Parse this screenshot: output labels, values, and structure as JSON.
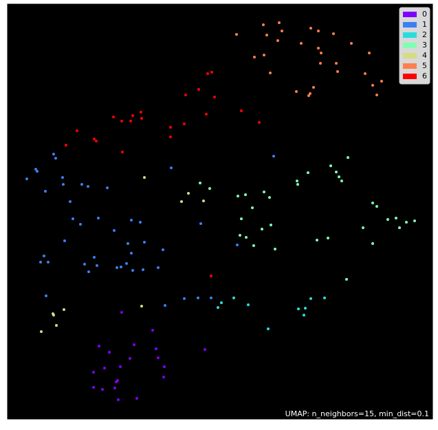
{
  "chart_data": {
    "type": "scatter",
    "annotation": "UMAP: n_neighbors=15, min_dist=0.1",
    "xlim": [
      0,
      618
    ],
    "ylim": [
      0,
      603
    ],
    "legend": "upper right",
    "background": "#000000",
    "series": [
      {
        "name": "0",
        "color": "#8000ff",
        "x": [
          166,
          211,
          133,
          148,
          184,
          216,
          219,
          178,
          164,
          141,
          125,
          228,
          227,
          287,
          158,
          160,
          156,
          125,
          138,
          161,
          188
        ],
        "y": [
          155,
          129,
          106,
          97,
          108,
          102,
          89,
          88,
          76,
          74,
          68,
          76,
          61,
          101,
          54,
          56,
          45,
          46,
          43,
          28,
          30
        ]
      },
      {
        "name": "1",
        "color": "#3b80f2",
        "x": [
          67,
          70,
          41,
          43,
          28,
          80,
          81,
          108,
          117,
          145,
          55,
          238,
          387,
          91,
          95,
          106,
          132,
          180,
          193,
          155,
          281,
          83,
          53,
          48,
          59,
          112,
          130,
          126,
          159,
          165,
          173,
          180,
          199,
          226,
          175,
          118,
          182,
          197,
          219,
          334,
          56,
          229,
          257,
          277,
          296
        ],
        "y": [
          385,
          379,
          363,
          360,
          349,
          351,
          341,
          341,
          338,
          336,
          331,
          365,
          382,
          316,
          291,
          283,
          292,
          289,
          286,
          274,
          284,
          259,
          237,
          228,
          228,
          225,
          223,
          235,
          220,
          221,
          226,
          241,
          257,
          246,
          255,
          214,
          216,
          217,
          220,
          253,
          179,
          165,
          175,
          176,
          176
        ]
      },
      {
        "name": "2",
        "color": "#2adddd",
        "x": [
          311,
          306,
          329,
          350,
          441,
          461,
          423,
          433,
          431,
          379
        ],
        "y": [
          169,
          162,
          176,
          166,
          175,
          176,
          160,
          161,
          151,
          131
        ]
      },
      {
        "name": "3",
        "color": "#80ffb4",
        "x": [
          495,
          470,
          478,
          437,
          421,
          422,
          482,
          486,
          280,
          294,
          335,
          346,
          373,
          381,
          356,
          340,
          383,
          370,
          338,
          347,
          358,
          389,
          450,
          466,
          531,
          537,
          517,
          553,
          565,
          570,
          580,
          592,
          531,
          493
        ],
        "y": [
          380,
          368,
          359,
          358,
          346,
          341,
          352,
          346,
          343,
          335,
          324,
          326,
          330,
          322,
          307,
          291,
          282,
          276,
          267,
          264,
          252,
          247,
          260,
          263,
          314,
          309,
          278,
          290,
          292,
          278,
          286,
          288,
          255,
          203
        ]
      },
      {
        "name": "4",
        "color": "#d4dd80",
        "x": [
          199,
          253,
          263,
          285,
          82,
          66,
          67,
          71,
          49,
          195
        ],
        "y": [
          351,
          316,
          328,
          317,
          159,
          153,
          151,
          136,
          127,
          164
        ]
      },
      {
        "name": "5",
        "color": "#ff7f4e",
        "x": [
          333,
          372,
          395,
          377,
          399,
          441,
          452,
          474,
          393,
          427,
          452,
          456,
          500,
          526,
          359,
          373,
          382,
          455,
          478,
          480,
          520,
          445,
          420,
          440,
          438,
          544,
          531,
          537
        ],
        "y": [
          559,
          573,
          576,
          558,
          564,
          568,
          564,
          560,
          550,
          546,
          539,
          532,
          546,
          532,
          526,
          529,
          503,
          517,
          517,
          505,
          502,
          482,
          476,
          473,
          470,
          491,
          485,
          471
        ]
      },
      {
        "name": "6",
        "color": "#ff0000",
        "x": [
          291,
          297,
          278,
          301,
          340,
          259,
          289,
          194,
          182,
          195,
          154,
          166,
          179,
          257,
          237,
          366,
          101,
          126,
          129,
          85,
          237,
          167,
          296
        ],
        "y": [
          502,
          504,
          479,
          468,
          448,
          471,
          443,
          446,
          441,
          437,
          439,
          433,
          433,
          429,
          424,
          431,
          419,
          407,
          404,
          398,
          410,
          388,
          208
        ]
      }
    ]
  }
}
